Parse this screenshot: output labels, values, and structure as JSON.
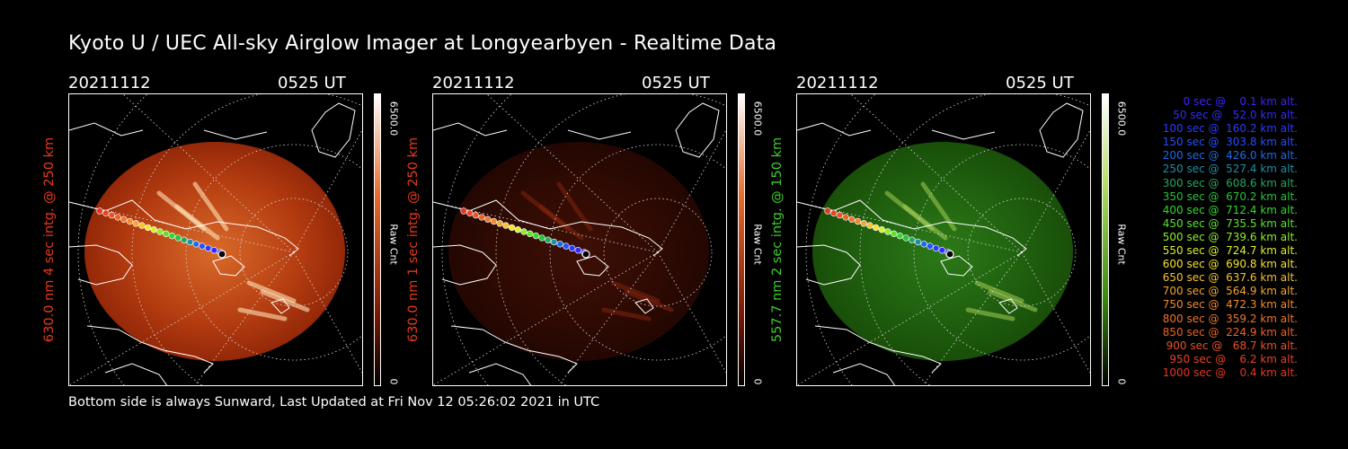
{
  "title": "Kyoto U / UEC All-sky Airglow Imager at Longyearbyen - Realtime Data",
  "footer": "Bottom side is always Sunward, Last Updated at Fri Nov 12 05:26:02 2021 in UTC",
  "panels": [
    {
      "date": "20211112",
      "time": "0525 UT",
      "ylabel": "630.0 nm 4 sec intg. @ 250 km",
      "ylabel_color": "#e8391d",
      "cbar_max": "6500.0",
      "cbar_min": "0",
      "cbar_label": "Raw Cnt",
      "image_color": "#b83a0e",
      "brightness": "bright"
    },
    {
      "date": "20211112",
      "time": "0525 UT",
      "ylabel": "630.0 nm 1 sec intg. @ 250 km",
      "ylabel_color": "#e8391d",
      "cbar_max": "6500.0",
      "cbar_min": "0",
      "cbar_label": "Raw Cnt",
      "image_color": "#3a0c04",
      "brightness": "dim"
    },
    {
      "date": "20211112",
      "time": "0525 UT",
      "ylabel": "557.7 nm 2 sec intg. @ 150 km",
      "ylabel_color": "#3ccf2a",
      "cbar_max": "6500.0",
      "cbar_min": "0",
      "cbar_label": "Raw Cnt",
      "image_color": "#1f6410",
      "brightness": "green"
    }
  ],
  "legend": [
    {
      "text": "   0 sec @    0.1 km alt.",
      "color": "#3b22ff"
    },
    {
      "text": "  50 sec @   52.0 km alt.",
      "color": "#2f2cff"
    },
    {
      "text": " 100 sec @  160.2 km alt.",
      "color": "#2a3bff"
    },
    {
      "text": " 150 sec @  303.8 km alt.",
      "color": "#2450ff"
    },
    {
      "text": " 200 sec @  426.0 km alt.",
      "color": "#1e6ae8"
    },
    {
      "text": " 250 sec @  527.4 km alt.",
      "color": "#1e8fa8"
    },
    {
      "text": " 300 sec @  608.6 km alt.",
      "color": "#22a860"
    },
    {
      "text": " 350 sec @  670.2 km alt.",
      "color": "#27c43a"
    },
    {
      "text": " 400 sec @  712.4 km alt.",
      "color": "#34d82a"
    },
    {
      "text": " 450 sec @  735.5 km alt.",
      "color": "#5ae628"
    },
    {
      "text": " 500 sec @  739.6 km alt.",
      "color": "#8ff02a"
    },
    {
      "text": " 550 sec @  724.7 km alt.",
      "color": "#d8f22c"
    },
    {
      "text": " 600 sec @  690.8 km alt.",
      "color": "#f6e22e"
    },
    {
      "text": " 650 sec @  637.6 km alt.",
      "color": "#f6c22e"
    },
    {
      "text": " 700 sec @  564.9 km alt.",
      "color": "#f4a52c"
    },
    {
      "text": " 750 sec @  472.3 km alt.",
      "color": "#f28a2a"
    },
    {
      "text": " 800 sec @  359.2 km alt.",
      "color": "#f07528"
    },
    {
      "text": " 850 sec @  224.9 km alt.",
      "color": "#ee6226"
    },
    {
      "text": " 900 sec @   68.7 km alt.",
      "color": "#ec5024"
    },
    {
      "text": " 950 sec @    6.2 km alt.",
      "color": "#ea4222"
    },
    {
      "text": "1000 sec @    0.4 km alt.",
      "color": "#e83620"
    }
  ]
}
